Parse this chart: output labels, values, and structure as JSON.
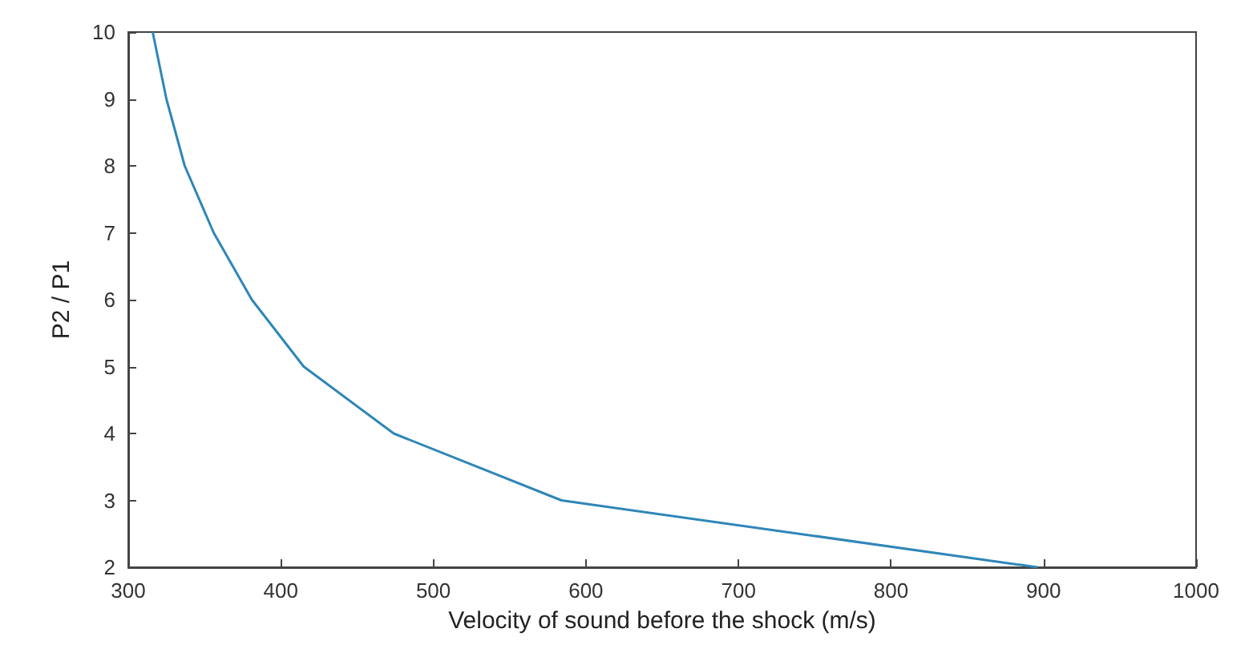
{
  "chart_data": {
    "type": "line",
    "xlabel": "Velocity of sound before the shock (m/s)",
    "ylabel": "P2 / P1",
    "x": [
      316,
      325,
      337,
      356,
      381,
      415,
      474,
      584,
      896
    ],
    "series": [
      {
        "color": "#2e86b8",
        "values": [
          10,
          9,
          8,
          7,
          6,
          5,
          4,
          3,
          2
        ]
      }
    ],
    "xlim": [
      300,
      1000
    ],
    "xticks": [
      300,
      400,
      500,
      600,
      700,
      800,
      900,
      1000
    ],
    "ylim": [
      2,
      10
    ],
    "yticks": [
      2,
      3,
      4,
      5,
      6,
      7,
      8,
      9,
      10
    ],
    "grid": false,
    "marker": "none",
    "line_style": "solid"
  }
}
